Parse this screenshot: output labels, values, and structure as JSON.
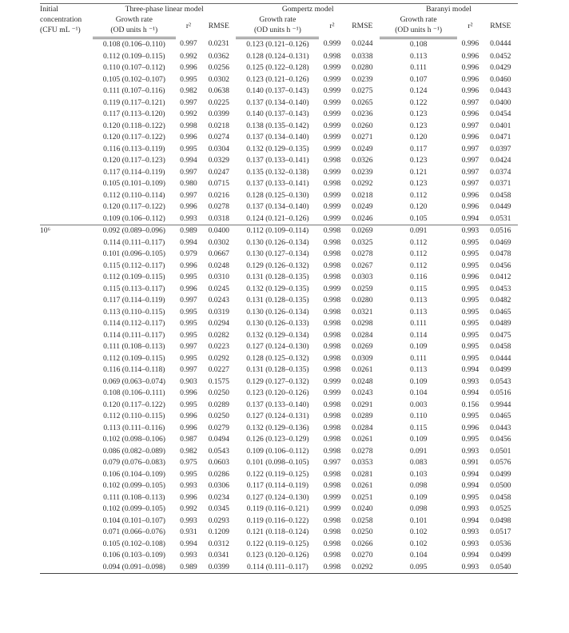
{
  "header": {
    "conc_label": [
      "Initial",
      "concentration",
      "(CFU mL ⁻¹)"
    ],
    "models": [
      "Three-phase linear model",
      "Gompertz model",
      "Baranyi model"
    ],
    "rate_label": [
      "Growth rate",
      "(OD units h ⁻¹)"
    ],
    "r2_label": "r²",
    "rmse_label": "RMSE"
  },
  "groups": [
    {
      "concentration": "",
      "rows": [
        [
          "0.108 (0.106–0.110)",
          "0.997",
          "0.0231",
          "0.123 (0.121–0.126)",
          "0.999",
          "0.0244",
          "0.108",
          "0.996",
          "0.0444"
        ],
        [
          "0.112 (0.109–0.115)",
          "0.992",
          "0.0362",
          "0.128 (0.124–0.131)",
          "0.998",
          "0.0338",
          "0.113",
          "0.996",
          "0.0452"
        ],
        [
          "0.110 (0.107–0.112)",
          "0.996",
          "0.0256",
          "0.125 (0.122–0.128)",
          "0.999",
          "0.0280",
          "0.111",
          "0.996",
          "0.0429"
        ],
        [
          "0.105 (0.102–0.107)",
          "0.995",
          "0.0302",
          "0.123 (0.121–0.126)",
          "0.999",
          "0.0239",
          "0.107",
          "0.996",
          "0.0460"
        ],
        [
          "0.111 (0.107–0.116)",
          "0.982",
          "0.0638",
          "0.140 (0.137–0.143)",
          "0.999",
          "0.0275",
          "0.124",
          "0.996",
          "0.0443"
        ],
        [
          "0.119 (0.117–0.121)",
          "0.997",
          "0.0225",
          "0.137 (0.134–0.140)",
          "0.999",
          "0.0265",
          "0.122",
          "0.997",
          "0.0400"
        ],
        [
          "0.117 (0.113–0.120)",
          "0.992",
          "0.0399",
          "0.140 (0.137–0.143)",
          "0.999",
          "0.0236",
          "0.123",
          "0.996",
          "0.0454"
        ],
        [
          "0.120 (0.118–0.122)",
          "0.998",
          "0.0218",
          "0.138 (0.135–0.142)",
          "0.999",
          "0.0260",
          "0.123",
          "0.997",
          "0.0401"
        ],
        [
          "0.120 (0.117–0.122)",
          "0.996",
          "0.0274",
          "0.137 (0.134–0.140)",
          "0.999",
          "0.0271",
          "0.120",
          "0.996",
          "0.0471"
        ],
        [
          "0.116 (0.113–0.119)",
          "0.995",
          "0.0304",
          "0.132 (0.129–0.135)",
          "0.999",
          "0.0249",
          "0.117",
          "0.997",
          "0.0397"
        ],
        [
          "0.120 (0.117–0.123)",
          "0.994",
          "0.0329",
          "0.137 (0.133–0.141)",
          "0.998",
          "0.0326",
          "0.123",
          "0.997",
          "0.0424"
        ],
        [
          "0.117 (0.114–0.119)",
          "0.997",
          "0.0247",
          "0.135 (0.132–0.138)",
          "0.999",
          "0.0239",
          "0.121",
          "0.997",
          "0.0374"
        ],
        [
          "0.105 (0.101–0.109)",
          "0.980",
          "0.0715",
          "0.137 (0.133–0.141)",
          "0.998",
          "0.0292",
          "0.123",
          "0.997",
          "0.0371"
        ],
        [
          "0.112 (0.110–0.114)",
          "0.997",
          "0.0216",
          "0.128 (0.125–0.130)",
          "0.999",
          "0.0218",
          "0.112",
          "0.996",
          "0.0458"
        ],
        [
          "0.120 (0.117–0.122)",
          "0.996",
          "0.0278",
          "0.137 (0.134–0.140)",
          "0.999",
          "0.0249",
          "0.120",
          "0.996",
          "0.0449"
        ],
        [
          "0.109 (0.106–0.112)",
          "0.993",
          "0.0318",
          "0.124 (0.121–0.126)",
          "0.999",
          "0.0246",
          "0.105",
          "0.994",
          "0.0531"
        ]
      ]
    },
    {
      "concentration": "10⁶",
      "rows": [
        [
          "0.092 (0.089–0.096)",
          "0.989",
          "0.0400",
          "0.112 (0.109–0.114)",
          "0.998",
          "0.0269",
          "0.091",
          "0.993",
          "0.0516"
        ],
        [
          "0.114 (0.111–0.117)",
          "0.994",
          "0.0302",
          "0.130 (0.126–0.134)",
          "0.998",
          "0.0325",
          "0.112",
          "0.995",
          "0.0469"
        ],
        [
          "0.101 (0.096–0.105)",
          "0.979",
          "0.0667",
          "0.130 (0.127–0.134)",
          "0.998",
          "0.0278",
          "0.112",
          "0.995",
          "0.0478"
        ],
        [
          "0.115 (0.112–0.117)",
          "0.996",
          "0.0248",
          "0.129 (0.126–0.132)",
          "0.998",
          "0.0267",
          "0.112",
          "0.995",
          "0.0456"
        ],
        [
          "0.112 (0.109–0.115)",
          "0.995",
          "0.0310",
          "0.131 (0.128–0.135)",
          "0.998",
          "0.0303",
          "0.116",
          "0.996",
          "0.0412"
        ],
        [
          "0.115 (0.113–0.117)",
          "0.996",
          "0.0245",
          "0.132 (0.129–0.135)",
          "0.999",
          "0.0259",
          "0.115",
          "0.995",
          "0.0453"
        ],
        [
          "0.117 (0.114–0.119)",
          "0.997",
          "0.0243",
          "0.131 (0.128–0.135)",
          "0.998",
          "0.0280",
          "0.113",
          "0.995",
          "0.0482"
        ],
        [
          "0.113 (0.110–0.115)",
          "0.995",
          "0.0319",
          "0.130 (0.126–0.134)",
          "0.998",
          "0.0321",
          "0.113",
          "0.995",
          "0.0465"
        ],
        [
          "0.114 (0.112–0.117)",
          "0.995",
          "0.0294",
          "0.130 (0.126–0.133)",
          "0.998",
          "0.0298",
          "0.111",
          "0.995",
          "0.0489"
        ],
        [
          "0.114 (0.111–0.117)",
          "0.995",
          "0.0282",
          "0.132 (0.129–0.134)",
          "0.998",
          "0.0284",
          "0.114",
          "0.995",
          "0.0475"
        ],
        [
          "0.111 (0.108–0.113)",
          "0.997",
          "0.0223",
          "0.127 (0.124–0.130)",
          "0.998",
          "0.0269",
          "0.109",
          "0.995",
          "0.0458"
        ],
        [
          "0.112 (0.109–0.115)",
          "0.995",
          "0.0292",
          "0.128 (0.125–0.132)",
          "0.998",
          "0.0309",
          "0.111",
          "0.995",
          "0.0444"
        ],
        [
          "0.116 (0.114–0.118)",
          "0.997",
          "0.0227",
          "0.131 (0.128–0.135)",
          "0.998",
          "0.0261",
          "0.113",
          "0.994",
          "0.0499"
        ],
        [
          "0.069 (0.063–0.074)",
          "0.903",
          "0.1575",
          "0.129 (0.127–0.132)",
          "0.999",
          "0.0248",
          "0.109",
          "0.993",
          "0.0543"
        ],
        [
          "0.108 (0.106–0.111)",
          "0.996",
          "0.0250",
          "0.123 (0.120–0.126)",
          "0.999",
          "0.0243",
          "0.104",
          "0.994",
          "0.0516"
        ],
        [
          "0.120 (0.117–0.122)",
          "0.995",
          "0.0289",
          "0.137 (0.133–0.140)",
          "0.998",
          "0.0291",
          "0.003",
          "0.156",
          "0.9944"
        ],
        [
          "0.112 (0.110–0.115)",
          "0.996",
          "0.0250",
          "0.127 (0.124–0.131)",
          "0.998",
          "0.0289",
          "0.110",
          "0.995",
          "0.0465"
        ],
        [
          "0.113 (0.111–0.116)",
          "0.996",
          "0.0279",
          "0.132 (0.129–0.136)",
          "0.998",
          "0.0284",
          "0.115",
          "0.996",
          "0.0443"
        ],
        [
          "0.102 (0.098–0.106)",
          "0.987",
          "0.0494",
          "0.126 (0.123–0.129)",
          "0.998",
          "0.0261",
          "0.109",
          "0.995",
          "0.0456"
        ],
        [
          "0.086 (0.082–0.089)",
          "0.982",
          "0.0543",
          "0.109 (0.106–0.112)",
          "0.998",
          "0.0278",
          "0.091",
          "0.993",
          "0.0501"
        ],
        [
          "0.079 (0.076–0.083)",
          "0.975",
          "0.0603",
          "0.101 (0.098–0.105)",
          "0.997",
          "0.0353",
          "0.083",
          "0.991",
          "0.0576"
        ],
        [
          "0.106 (0.104–0.109)",
          "0.995",
          "0.0286",
          "0.122 (0.119–0.125)",
          "0.998",
          "0.0281",
          "0.103",
          "0.994",
          "0.0499"
        ],
        [
          "0.102 (0.099–0.105)",
          "0.993",
          "0.0306",
          "0.117 (0.114–0.119)",
          "0.998",
          "0.0261",
          "0.098",
          "0.994",
          "0.0500"
        ],
        [
          "0.111 (0.108–0.113)",
          "0.996",
          "0.0234",
          "0.127 (0.124–0.130)",
          "0.999",
          "0.0251",
          "0.109",
          "0.995",
          "0.0458"
        ],
        [
          "0.102 (0.099–0.105)",
          "0.992",
          "0.0345",
          "0.119 (0.116–0.121)",
          "0.999",
          "0.0240",
          "0.098",
          "0.993",
          "0.0525"
        ],
        [
          "0.104 (0.101–0.107)",
          "0.993",
          "0.0293",
          "0.119 (0.116–0.122)",
          "0.998",
          "0.0258",
          "0.101",
          "0.994",
          "0.0498"
        ],
        [
          "0.071 (0.066–0.076)",
          "0.931",
          "0.1209",
          "0.121 (0.118–0.124)",
          "0.998",
          "0.0250",
          "0.102",
          "0.993",
          "0.0517"
        ],
        [
          "0.105 (0.102–0.108)",
          "0.994",
          "0.0312",
          "0.122 (0.119–0.125)",
          "0.998",
          "0.0266",
          "0.102",
          "0.993",
          "0.0536"
        ],
        [
          "0.106 (0.103–0.109)",
          "0.993",
          "0.0341",
          "0.123 (0.120–0.126)",
          "0.998",
          "0.0270",
          "0.104",
          "0.994",
          "0.0499"
        ],
        [
          "0.094 (0.091–0.098)",
          "0.989",
          "0.0399",
          "0.114 (0.111–0.117)",
          "0.998",
          "0.0292",
          "0.095",
          "0.993",
          "0.0540"
        ]
      ]
    }
  ]
}
